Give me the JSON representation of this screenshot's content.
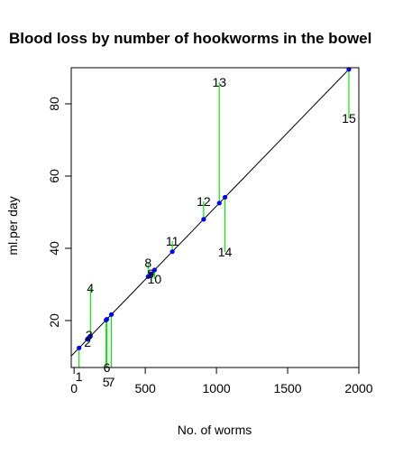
{
  "chart_data": {
    "type": "scatter",
    "title": "Blood loss by number of hookworms in the bowel",
    "xlabel": "No. of worms",
    "ylabel": "ml.per day",
    "xlim": [
      -20,
      2000
    ],
    "ylim": [
      7,
      90
    ],
    "xticks": [
      0,
      500,
      1000,
      1500,
      2000
    ],
    "yticks": [
      20,
      40,
      60,
      80
    ],
    "fit_line": {
      "intercept": 11.0,
      "slope": 0.0407
    },
    "colors": {
      "points": "#0000ff",
      "residuals": "#00ee00",
      "fit": "#000000"
    },
    "points": [
      {
        "label": "1",
        "x": 35,
        "y": 4.5
      },
      {
        "label": "2",
        "x": 95,
        "y": 14
      },
      {
        "label": "3",
        "x": 105,
        "y": 16
      },
      {
        "label": "4",
        "x": 115,
        "y": 29
      },
      {
        "label": "5",
        "x": 225,
        "y": 3
      },
      {
        "label": "6",
        "x": 230,
        "y": 7
      },
      {
        "label": "7",
        "x": 262,
        "y": 3
      },
      {
        "label": "8",
        "x": 520,
        "y": 36
      },
      {
        "label": "9",
        "x": 540,
        "y": 33
      },
      {
        "label": "10",
        "x": 565,
        "y": 31.5
      },
      {
        "label": "11",
        "x": 690,
        "y": 42
      },
      {
        "label": "12",
        "x": 910,
        "y": 53
      },
      {
        "label": "13",
        "x": 1020,
        "y": 86
      },
      {
        "label": "14",
        "x": 1060,
        "y": 39
      },
      {
        "label": "15",
        "x": 1930,
        "y": 76
      }
    ]
  }
}
